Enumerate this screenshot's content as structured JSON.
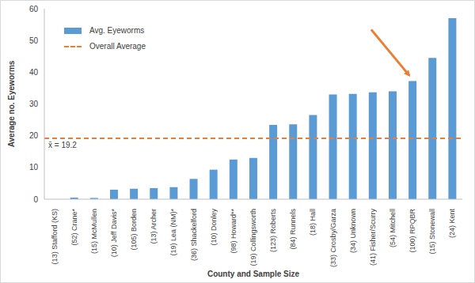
{
  "chart_data": {
    "type": "bar",
    "x_label": "County and Sample Size",
    "y_label": "Average no. Eyeworms",
    "categories": [
      "(13) Stafford (KS)",
      "(52) Crane*",
      "(15) McMullen",
      "(10) Jeff Davis*",
      "(105) Borden",
      "(13) Archer",
      "(19) Lea (NM)*",
      "(36) Shackelford",
      "(10) Donley",
      "(98) Howard**",
      "(19) Collingsworth",
      "(123) Roberts",
      "(84) Runnels",
      "(18) Hall",
      "(33) Crosby/Garza",
      "(34) Unknown",
      "(41) Fisher/Scurry",
      "(54) Mitchell",
      "(100) RPQBR",
      "(15) Stonewall",
      "(24) Kent"
    ],
    "series": [
      {
        "name": "Avg. Eyeworms",
        "color": "#5b9bd5",
        "values": [
          0,
          0.5,
          0.4,
          3,
          3.3,
          3.5,
          3.8,
          6.4,
          9.3,
          12.5,
          13,
          23.4,
          23.6,
          26.5,
          33,
          33.2,
          33.7,
          34,
          37.2,
          44.5,
          57
        ]
      }
    ],
    "reference_line": {
      "name": "Overall Average",
      "value": 19.2,
      "label": "x̄ = 19.2",
      "color": "#ed7d31",
      "line_style": "dashed"
    },
    "ylim": [
      0,
      60
    ],
    "yticks": [
      0,
      10,
      20,
      30,
      40,
      50,
      60
    ],
    "grid": false,
    "legend": "upper left"
  }
}
